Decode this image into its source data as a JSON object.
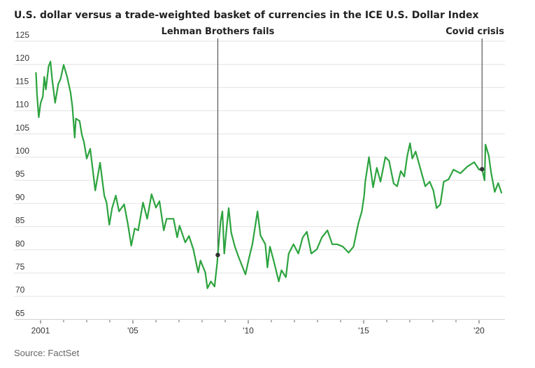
{
  "chart_data": {
    "type": "line",
    "title": "U.S. dollar versus a trade-weighted basket of currencies in the ICE U.S. Dollar Index",
    "xlabel": "",
    "ylabel": "",
    "source": "Source: FactSet",
    "ylim": [
      65,
      125
    ],
    "yticks": [
      125,
      120,
      115,
      110,
      105,
      100,
      95,
      90,
      85,
      80,
      75,
      70,
      65
    ],
    "xlim": [
      2000.8,
      2021
    ],
    "xtick_years": [
      2001,
      2002,
      2003,
      2004,
      2005,
      2006,
      2007,
      2008,
      2009,
      2010,
      2011,
      2012,
      2013,
      2014,
      2015,
      2016,
      2017,
      2018,
      2019,
      2020
    ],
    "xtick_labels": [
      {
        "year": 2001,
        "label": "2001"
      },
      {
        "year": 2005,
        "label": "'05"
      },
      {
        "year": 2010,
        "label": "'10"
      },
      {
        "year": 2015,
        "label": "'15"
      },
      {
        "year": 2020,
        "label": "'20"
      }
    ],
    "grid": true,
    "line_color": "#2ca33e",
    "annotations": [
      {
        "label": "Lehman Brothers fails",
        "x": 2008.68,
        "y": 78.9,
        "align": "center"
      },
      {
        "label": "Covid crisis",
        "x": 2020.13,
        "y": 97.4,
        "align": "right"
      }
    ],
    "series": [
      {
        "x": [
          2000.8,
          2000.85,
          2000.92,
          2001.0,
          2001.1,
          2001.16,
          2001.23,
          2001.35,
          2001.43,
          2001.5,
          2001.63,
          2001.77,
          2001.87,
          2002.0,
          2002.15,
          2002.3,
          2002.38,
          2002.48,
          2002.53,
          2002.69,
          2002.79,
          2002.88,
          2003.0,
          2003.15,
          2003.25,
          2003.37,
          2003.58,
          2003.76,
          2003.86,
          2003.98,
          2004.1,
          2004.26,
          2004.4,
          2004.62,
          2004.78,
          2004.93,
          2005.08,
          2005.23,
          2005.44,
          2005.62,
          2005.81,
          2006.0,
          2006.15,
          2006.34,
          2006.46,
          2006.76,
          2006.92,
          2007.02,
          2007.27,
          2007.43,
          2007.62,
          2007.83,
          2007.93,
          2008.14,
          2008.23,
          2008.38,
          2008.54,
          2008.65,
          2008.68,
          2008.8,
          2008.88,
          2008.96,
          2009.06,
          2009.15,
          2009.26,
          2009.42,
          2009.57,
          2009.76,
          2009.88,
          2010.03,
          2010.18,
          2010.4,
          2010.53,
          2010.74,
          2010.83,
          2010.94,
          2011.1,
          2011.32,
          2011.44,
          2011.63,
          2011.75,
          2011.96,
          2012.17,
          2012.36,
          2012.54,
          2012.73,
          2012.97,
          2013.19,
          2013.43,
          2013.64,
          2013.85,
          2014.1,
          2014.35,
          2014.56,
          2014.77,
          2014.92,
          2015.02,
          2015.07,
          2015.23,
          2015.41,
          2015.57,
          2015.73,
          2015.94,
          2016.1,
          2016.3,
          2016.45,
          2016.61,
          2016.76,
          2016.89,
          2017.01,
          2017.11,
          2017.25,
          2017.47,
          2017.67,
          2017.86,
          2018.02,
          2018.16,
          2018.32,
          2018.47,
          2018.68,
          2018.89,
          2019.19,
          2019.5,
          2019.79,
          2020.0,
          2020.13,
          2020.24,
          2020.28,
          2020.42,
          2020.52,
          2020.68,
          2020.83,
          2020.98
        ],
        "values": [
          118.3,
          113.3,
          108.6,
          111.6,
          113.1,
          117.3,
          114.6,
          119.6,
          120.6,
          116.9,
          111.7,
          115.8,
          116.9,
          119.9,
          117.3,
          113.9,
          110.9,
          104.2,
          108.3,
          107.8,
          104.8,
          103.3,
          99.7,
          101.8,
          97.7,
          92.8,
          98.8,
          91.7,
          90.2,
          85.4,
          89,
          91.7,
          88.3,
          89.8,
          85.7,
          80.9,
          84.6,
          84.2,
          90.2,
          86.7,
          92,
          89.1,
          90.5,
          84.2,
          86.7,
          86.7,
          82.7,
          85.2,
          81.6,
          83,
          80.1,
          75.1,
          77.7,
          75.1,
          71.7,
          73.2,
          72.1,
          77.1,
          78.9,
          86.1,
          88.3,
          79.2,
          84.6,
          89,
          83.7,
          80.7,
          78.6,
          76.2,
          74.7,
          78.2,
          81.2,
          88.3,
          83.1,
          81.2,
          76.2,
          80.7,
          77.7,
          73.2,
          75.6,
          74.1,
          79.2,
          81.2,
          79.2,
          82.7,
          83.9,
          79.2,
          80.1,
          82.7,
          84.2,
          81.2,
          81.2,
          80.7,
          79.4,
          80.7,
          85.7,
          88.3,
          91.7,
          94.7,
          100,
          93.5,
          97.7,
          94.7,
          100,
          99.2,
          94.3,
          93.7,
          97,
          95.8,
          100.3,
          103,
          99.7,
          101.2,
          97.3,
          93.7,
          94.7,
          92.8,
          89,
          89.8,
          94.7,
          95.2,
          97.3,
          96.5,
          98,
          98.9,
          97.3,
          97.4,
          95,
          102.7,
          100.3,
          96.7,
          92.5,
          94.4,
          92.2
        ]
      }
    ]
  }
}
